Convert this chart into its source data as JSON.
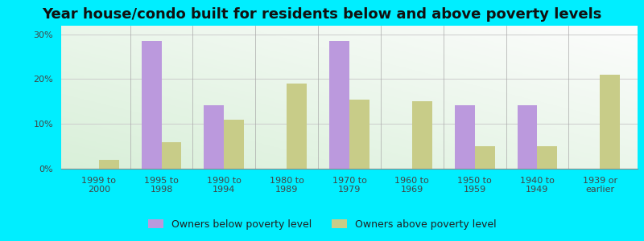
{
  "title": "Year house/condo built for residents below and above poverty levels",
  "categories": [
    "1999 to\n2000",
    "1995 to\n1998",
    "1990 to\n1994",
    "1980 to\n1989",
    "1970 to\n1979",
    "1960 to\n1969",
    "1950 to\n1959",
    "1940 to\n1949",
    "1939 or\nearlier"
  ],
  "below_poverty": [
    0.0,
    28.5,
    14.2,
    0.0,
    28.5,
    0.0,
    14.2,
    14.2,
    0.0
  ],
  "above_poverty": [
    2.0,
    6.0,
    11.0,
    19.0,
    15.5,
    15.0,
    5.0,
    5.0,
    21.0
  ],
  "below_color": "#bb99dd",
  "above_color": "#c8cc88",
  "outer_background": "#00eeff",
  "ylim": [
    0,
    32
  ],
  "yticks": [
    0,
    10,
    20,
    30
  ],
  "ytick_labels": [
    "0%",
    "10%",
    "20%",
    "30%"
  ],
  "grid_color": "#cccccc",
  "legend_below_label": "Owners below poverty level",
  "legend_above_label": "Owners above poverty level",
  "title_fontsize": 13,
  "tick_fontsize": 8,
  "legend_fontsize": 9,
  "bar_width": 0.32
}
